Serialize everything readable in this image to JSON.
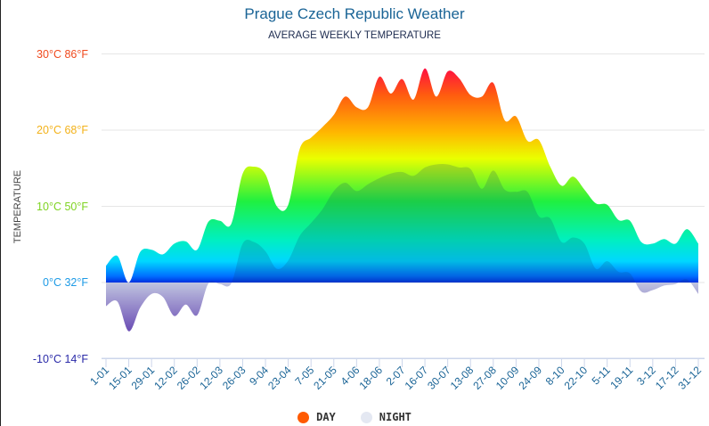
{
  "chart_data": {
    "type": "area",
    "title": "Prague Czech Republic Weather",
    "subtitle": "AVERAGE WEEKLY TEMPERATURE",
    "ylabel": "TEMPERATURE",
    "xlabel": "",
    "ylim": [
      -10,
      30
    ],
    "y_ticks": [
      {
        "value": 30,
        "label": "30°C 86°F",
        "color": "#f04a1e"
      },
      {
        "value": 20,
        "label": "20°C 68°F",
        "color": "#f3b21a"
      },
      {
        "value": 10,
        "label": "10°C 50°F",
        "color": "#7ed321"
      },
      {
        "value": 0,
        "label": "0°C 32°F",
        "color": "#1e9be6"
      },
      {
        "value": -10,
        "label": "-10°C 14°F",
        "color": "#2a2aa8"
      }
    ],
    "x_tick_labels": [
      "1-01",
      "15-01",
      "29-01",
      "12-02",
      "26-02",
      "12-03",
      "26-03",
      "9-04",
      "23-04",
      "7-05",
      "21-05",
      "4-06",
      "18-06",
      "2-07",
      "16-07",
      "30-07",
      "13-08",
      "27-08",
      "10-09",
      "24-09",
      "8-10",
      "22-10",
      "5-11",
      "19-11",
      "3-12",
      "17-12",
      "31-12"
    ],
    "grid": true,
    "legend_position": "bottom",
    "series": [
      {
        "name": "DAY",
        "color": "#ff5a00",
        "values": [
          2.2,
          3.5,
          0,
          4,
          4.3,
          3.7,
          5.1,
          5.4,
          4.3,
          8,
          8.1,
          7.7,
          14.3,
          15.2,
          14.2,
          10,
          10.2,
          17.5,
          19,
          20.4,
          22,
          24.4,
          23,
          23,
          27,
          24.8,
          26.7,
          24,
          28.1,
          24.4,
          27.7,
          26.8,
          24.6,
          24.4,
          26.2,
          21.3,
          21.8,
          18.6,
          18.7,
          15.2,
          12.7,
          13.9,
          12.2,
          10.4,
          10.2,
          8.2,
          8.1,
          5.3,
          5.1,
          5.7,
          5.1,
          7,
          5.1
        ]
      },
      {
        "name": "NIGHT",
        "color": "#e4e8f2",
        "values": [
          -3.1,
          -2.5,
          -6.4,
          -3.3,
          -1.5,
          -1.9,
          -4.4,
          -2.9,
          -4.3,
          -0.1,
          -0.2,
          -0.1,
          5.1,
          5.3,
          4.1,
          1.8,
          2.9,
          6.1,
          7.8,
          9.6,
          12,
          13.1,
          12,
          12.9,
          13.7,
          14.3,
          14.5,
          14,
          15.1,
          15.5,
          15.5,
          15.1,
          14.9,
          12.3,
          14.7,
          12.2,
          11.9,
          11.9,
          8.7,
          8.4,
          5.3,
          5.9,
          5.1,
          1.8,
          2.8,
          1.4,
          1.2,
          -1.2,
          -1,
          -0.4,
          -0.2,
          0.4,
          -1.5
        ]
      }
    ]
  }
}
